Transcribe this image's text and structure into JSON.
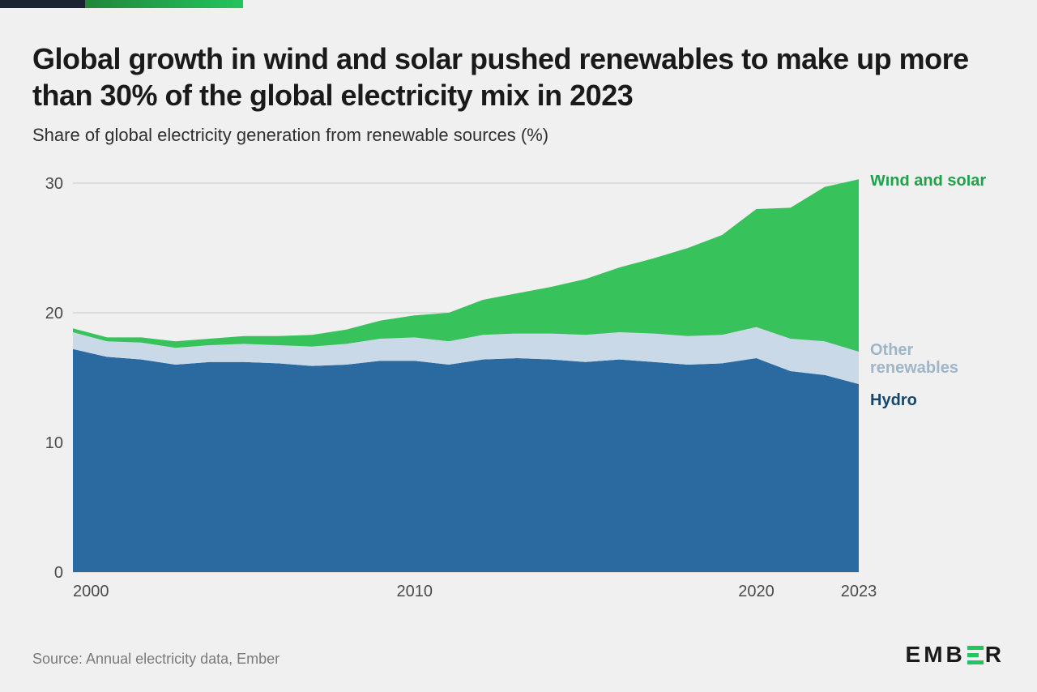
{
  "accent": {
    "dark": "#1a2332",
    "green_start": "#22863a",
    "green_end": "#22c55e"
  },
  "title": "Global growth in wind and solar pushed renewables to make up more than 30% of the global electricity mix in 2023",
  "subtitle": "Share of global electricity generation from renewable sources (%)",
  "chart": {
    "type": "stacked-area",
    "background_color": "#f0f0f0",
    "grid_color": "#c8c8c8",
    "axis_text_color": "#4a4a4a",
    "title_fontsize": 36,
    "subtitle_fontsize": 22,
    "label_fontsize": 20,
    "tick_fontsize": 20,
    "x": {
      "min": 2000,
      "max": 2023,
      "ticks": [
        2000,
        2010,
        2020,
        2023
      ]
    },
    "y": {
      "min": 0,
      "max": 30,
      "ticks": [
        0,
        10,
        20,
        30
      ]
    },
    "years": [
      2000,
      2001,
      2002,
      2003,
      2004,
      2005,
      2006,
      2007,
      2008,
      2009,
      2010,
      2011,
      2012,
      2013,
      2014,
      2015,
      2016,
      2017,
      2018,
      2019,
      2020,
      2021,
      2022,
      2023
    ],
    "series": [
      {
        "name": "Hydro",
        "label": "Hydro",
        "color": "#2a6aa0",
        "label_color": "#15476e",
        "values": [
          17.2,
          16.6,
          16.4,
          16.0,
          16.2,
          16.2,
          16.1,
          15.9,
          16.0,
          16.3,
          16.3,
          16.0,
          16.4,
          16.5,
          16.4,
          16.2,
          16.4,
          16.2,
          16.0,
          16.1,
          16.5,
          15.5,
          15.2,
          14.5
        ]
      },
      {
        "name": "Other renewables",
        "label": "Other\nrenewables",
        "color": "#c9d9e8",
        "label_color": "#9fb5c9",
        "values": [
          1.3,
          1.2,
          1.3,
          1.3,
          1.3,
          1.4,
          1.4,
          1.5,
          1.6,
          1.7,
          1.8,
          1.8,
          1.9,
          1.9,
          2.0,
          2.1,
          2.1,
          2.2,
          2.2,
          2.2,
          2.4,
          2.5,
          2.6,
          2.5
        ]
      },
      {
        "name": "Wind and solar",
        "label": "Wind and solar",
        "color": "#37c25c",
        "label_color": "#1fa24a",
        "values": [
          0.3,
          0.3,
          0.4,
          0.5,
          0.5,
          0.6,
          0.7,
          0.9,
          1.1,
          1.4,
          1.7,
          2.2,
          2.7,
          3.1,
          3.6,
          4.3,
          5.0,
          5.8,
          6.8,
          7.7,
          9.1,
          10.1,
          11.9,
          13.3
        ]
      }
    ]
  },
  "source": "Source: Annual electricity data, Ember",
  "logo": "EMBER"
}
